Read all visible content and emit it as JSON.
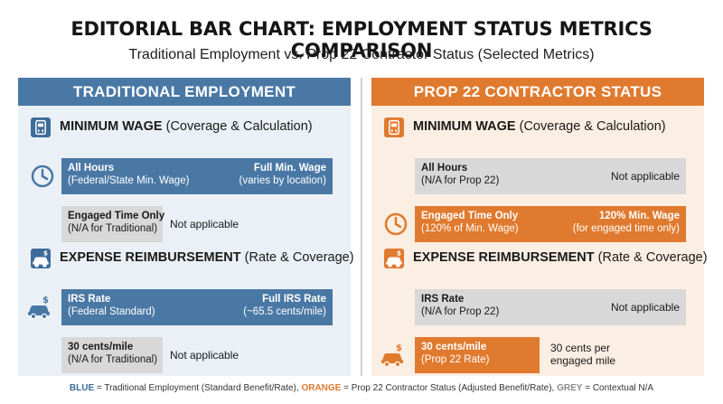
{
  "title": "EDITORIAL BAR CHART: EMPLOYMENT STATUS METRICS COMPARISON",
  "subtitle": "Traditional Employment vs. Prop 22 Contractor Status (Selected Metrics)",
  "colors": {
    "blue": "#4a78a5",
    "orange": "#e07a2e",
    "grey": "#d8d8d8"
  },
  "chart_data": {
    "type": "bar",
    "panels": [
      {
        "name": "TRADITIONAL EMPLOYMENT",
        "color": "#4a78a5",
        "sections": [
          {
            "title_bold": "MINIMUM WAGE",
            "title_rest": "(Coverage & Calculation)",
            "icon": "meter-icon",
            "rows": [
              {
                "label": "All Hours",
                "sublabel": "(Federal/State Min. Wage)",
                "value": "Full Min. Wage",
                "value_note": "(varies by location)",
                "status": "applicable",
                "fill": 1.0,
                "icon": "clock-icon"
              },
              {
                "label": "Engaged Time Only",
                "sublabel": "(N/A for Traditional)",
                "value": "Not applicable",
                "value_note": "",
                "status": "n/a",
                "fill": 0.0,
                "icon": ""
              }
            ]
          },
          {
            "title_bold": "EXPENSE REIMBURSEMENT",
            "title_rest": "(Rate & Coverage)",
            "icon": "car-dollar-icon",
            "rows": [
              {
                "label": "IRS Rate",
                "sublabel": "(Federal Standard)",
                "value": "Full IRS Rate",
                "value_note": "(~65.5 cents/mile)",
                "status": "applicable",
                "fill": 1.0,
                "icon": "car-dollar-icon"
              },
              {
                "label": "30 cents/mile",
                "sublabel": "(N/A for Traditional)",
                "value": "Not applicable",
                "value_note": "",
                "status": "n/a",
                "fill": 0.0,
                "icon": ""
              }
            ]
          }
        ]
      },
      {
        "name": "PROP 22 CONTRACTOR STATUS",
        "color": "#e07a2e",
        "sections": [
          {
            "title_bold": "MINIMUM WAGE",
            "title_rest": "(Coverage & Calculation)",
            "icon": "meter-icon",
            "rows": [
              {
                "label": "All Hours",
                "sublabel": "(N/A for Prop 22)",
                "value": "Not applicable",
                "value_note": "",
                "status": "n/a",
                "fill": 0.0,
                "icon": ""
              },
              {
                "label": "Engaged Time Only",
                "sublabel": "(120% of Min. Wage)",
                "value": "120% Min. Wage",
                "value_note": "(for engaged time only)",
                "status": "applicable",
                "fill": 1.0,
                "icon": "clock-icon"
              }
            ]
          },
          {
            "title_bold": "EXPENSE REIMBURSEMENT",
            "title_rest": "(Rate & Coverage)",
            "icon": "car-dollar-icon",
            "rows": [
              {
                "label": "IRS Rate",
                "sublabel": "(N/A for Prop 22)",
                "value": "Not applicable",
                "value_note": "",
                "status": "n/a",
                "fill": 0.0,
                "icon": ""
              },
              {
                "label": "30 cents/mile",
                "sublabel": "(Prop 22 Rate)",
                "value": "30 cents per",
                "value_note": "engaged mile",
                "status": "partial",
                "fill": 0.46,
                "icon": "car-dollar-icon"
              }
            ]
          }
        ]
      }
    ],
    "legend": [
      {
        "key": "BLUE",
        "text": " = Traditional Employment (Standard Benefit/Rate), "
      },
      {
        "key": "ORANGE",
        "text": " = Prop 22 Contractor Status (Adjusted Benefit/Rate), "
      },
      {
        "key": "GREY",
        "text": " = Contextual N/A"
      }
    ]
  }
}
